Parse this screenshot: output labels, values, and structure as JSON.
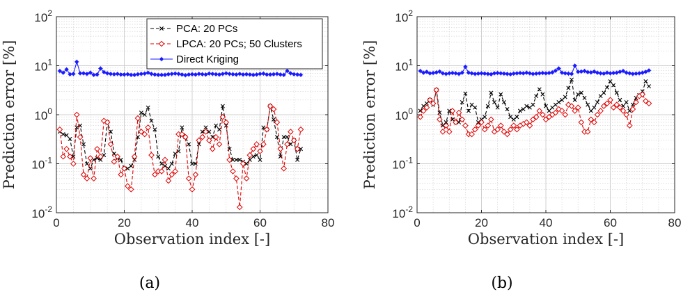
{
  "chart_data": [
    {
      "type": "line",
      "panel_label": "(a)",
      "xlabel": "Observation index [-]",
      "ylabel": "Prediction error [%]",
      "xlim": [
        0,
        80
      ],
      "ylim": [
        0.01,
        100
      ],
      "yscale": "log",
      "xticks": [
        "0",
        "20",
        "40",
        "60",
        "80"
      ],
      "yticks": [
        {
          "base": "10",
          "exp": "-2"
        },
        {
          "base": "10",
          "exp": "-1"
        },
        {
          "base": "10",
          "exp": "0"
        },
        {
          "base": "10",
          "exp": "1"
        },
        {
          "base": "10",
          "exp": "2"
        }
      ],
      "grid": true,
      "legend": "top-right",
      "series": [
        {
          "name": "PCA: 20 PCs",
          "color": "#000000",
          "marker": "x",
          "dash": "dashed",
          "values": [
            0.45,
            0.4,
            0.38,
            0.32,
            0.14,
            0.55,
            0.6,
            0.25,
            0.1,
            0.08,
            0.12,
            0.13,
            0.12,
            0.15,
            0.7,
            0.45,
            0.16,
            0.13,
            0.12,
            0.08,
            0.08,
            0.09,
            0.12,
            0.35,
            1.1,
            1.0,
            1.4,
            0.75,
            0.5,
            0.14,
            0.1,
            0.09,
            0.08,
            0.1,
            0.16,
            0.18,
            0.55,
            0.35,
            0.25,
            0.1,
            0.1,
            0.25,
            0.45,
            0.55,
            0.45,
            0.35,
            0.6,
            0.5,
            1.5,
            0.6,
            0.2,
            0.12,
            0.12,
            0.12,
            0.11,
            0.1,
            0.12,
            0.14,
            0.15,
            0.12,
            0.55,
            0.5,
            1.5,
            0.8,
            0.35,
            0.14,
            0.35,
            0.35,
            0.25,
            0.3,
            0.12,
            0.2
          ]
        },
        {
          "name": "LPCA: 20 PCs; 50 Clusters",
          "color": "#e00000",
          "marker": "diamond",
          "dash": "dashed",
          "values": [
            0.5,
            0.14,
            0.2,
            0.14,
            0.1,
            1.0,
            0.35,
            0.06,
            0.05,
            0.13,
            0.05,
            0.2,
            0.14,
            0.75,
            0.7,
            0.25,
            0.11,
            0.14,
            0.06,
            0.08,
            0.035,
            0.03,
            0.14,
            0.85,
            0.45,
            0.4,
            0.55,
            0.15,
            0.06,
            0.07,
            0.07,
            0.12,
            0.045,
            0.06,
            0.07,
            0.4,
            0.4,
            0.35,
            0.05,
            0.03,
            0.06,
            0.3,
            0.35,
            0.45,
            0.3,
            0.2,
            0.35,
            0.25,
            0.9,
            0.7,
            0.12,
            0.07,
            0.05,
            0.013,
            0.1,
            0.05,
            0.15,
            0.2,
            0.25,
            0.18,
            0.25,
            0.5,
            1.5,
            1.3,
            0.7,
            0.2,
            0.08,
            0.25,
            0.45,
            0.3,
            0.2,
            0.5
          ]
        },
        {
          "name": "Direct Kriging",
          "color": "#1a1aff",
          "marker": "star",
          "dash": "solid",
          "values": [
            7.8,
            7.2,
            8.4,
            6.7,
            6.8,
            12.0,
            7.0,
            7.0,
            6.8,
            7.2,
            6.5,
            6.6,
            8.8,
            7.4,
            7.0,
            6.8,
            6.7,
            6.8,
            6.6,
            6.6,
            6.7,
            6.5,
            6.5,
            6.7,
            6.8,
            6.9,
            7.2,
            6.8,
            6.6,
            6.5,
            6.5,
            6.5,
            6.7,
            6.8,
            6.9,
            6.8,
            6.6,
            6.4,
            6.6,
            6.7,
            6.6,
            6.8,
            6.7,
            6.6,
            6.9,
            6.8,
            6.7,
            6.6,
            6.8,
            7.0,
            6.8,
            6.7,
            6.6,
            6.8,
            6.6,
            6.7,
            6.6,
            6.5,
            6.6,
            6.8,
            6.9,
            6.6,
            6.6,
            6.7,
            6.8,
            6.6,
            6.5,
            7.8,
            7.0,
            6.7,
            6.6,
            6.5
          ]
        }
      ]
    },
    {
      "type": "line",
      "panel_label": "(b)",
      "xlabel": "Observation index [-]",
      "ylabel": "Prediction error [%]",
      "xlim": [
        0,
        80
      ],
      "ylim": [
        0.01,
        100
      ],
      "yscale": "log",
      "xticks": [
        "0",
        "20",
        "40",
        "60",
        "80"
      ],
      "yticks": [
        {
          "base": "10",
          "exp": "-2"
        },
        {
          "base": "10",
          "exp": "-1"
        },
        {
          "base": "10",
          "exp": "0"
        },
        {
          "base": "10",
          "exp": "1"
        },
        {
          "base": "10",
          "exp": "2"
        }
      ],
      "grid": true,
      "legend": "none",
      "series": [
        {
          "name": "PCA: 20 PCs",
          "color": "#000000",
          "marker": "x",
          "dash": "dashed",
          "values": [
            1.2,
            1.5,
            1.7,
            2.0,
            1.6,
            3.2,
            1.1,
            0.6,
            0.7,
            1.2,
            0.8,
            0.7,
            0.7,
            1.8,
            2.7,
            1.2,
            1.6,
            1.4,
            0.7,
            0.8,
            0.9,
            1.5,
            2.8,
            1.8,
            1.4,
            2.6,
            1.8,
            1.3,
            0.9,
            0.8,
            0.9,
            1.2,
            1.3,
            1.5,
            1.4,
            1.6,
            2.4,
            3.3,
            2.6,
            1.5,
            1.2,
            1.4,
            1.6,
            1.8,
            2.0,
            2.3,
            3.5,
            5.2,
            2.0,
            2.6,
            2.8,
            2.2,
            1.6,
            1.2,
            1.4,
            1.8,
            2.4,
            2.8,
            3.6,
            4.8,
            4.0,
            2.8,
            2.0,
            1.5,
            1.8,
            1.2,
            1.6,
            2.2,
            2.5,
            3.0,
            4.8,
            3.8
          ]
        },
        {
          "name": "LPCA: 20 PCs; 50 Clusters",
          "color": "#e00000",
          "marker": "diamond",
          "dash": "dashed",
          "values": [
            0.9,
            1.2,
            1.4,
            2.0,
            1.7,
            3.2,
            0.8,
            0.45,
            0.6,
            0.45,
            1.2,
            0.7,
            1.1,
            0.8,
            0.6,
            0.4,
            0.4,
            0.5,
            0.6,
            0.7,
            0.5,
            0.6,
            0.8,
            0.45,
            0.5,
            0.6,
            0.45,
            0.4,
            0.5,
            0.6,
            0.5,
            0.6,
            0.65,
            0.7,
            0.6,
            0.8,
            0.9,
            1.2,
            1.0,
            0.8,
            0.9,
            1.0,
            1.1,
            1.3,
            1.2,
            1.0,
            1.6,
            1.5,
            1.2,
            1.4,
            0.7,
            0.45,
            0.45,
            0.8,
            0.7,
            1.0,
            1.2,
            1.5,
            1.7,
            2.0,
            1.4,
            1.6,
            1.4,
            1.2,
            1.0,
            0.6,
            1.3,
            1.8,
            2.4,
            2.6,
            1.9,
            1.7
          ]
        },
        {
          "name": "Direct Kriging",
          "color": "#1a1aff",
          "marker": "star",
          "dash": "solid",
          "values": [
            7.8,
            7.2,
            7.5,
            7.0,
            7.1,
            7.3,
            7.6,
            7.0,
            6.8,
            7.0,
            7.1,
            7.0,
            6.8,
            7.2,
            9.5,
            7.2,
            7.0,
            6.8,
            6.9,
            7.0,
            6.9,
            6.8,
            6.7,
            7.0,
            7.1,
            7.0,
            6.9,
            6.8,
            6.7,
            6.9,
            7.0,
            7.1,
            7.0,
            7.2,
            7.0,
            6.8,
            6.9,
            7.0,
            7.1,
            7.0,
            7.1,
            7.3,
            7.9,
            8.8,
            7.2,
            7.0,
            6.9,
            6.8,
            10.0,
            7.5,
            7.6,
            7.8,
            7.4,
            7.3,
            7.6,
            7.2,
            7.0,
            6.9,
            7.2,
            7.0,
            7.1,
            7.2,
            7.5,
            7.8,
            7.2,
            7.0,
            6.8,
            6.9,
            7.0,
            7.2,
            7.5,
            8.0
          ]
        }
      ]
    }
  ]
}
